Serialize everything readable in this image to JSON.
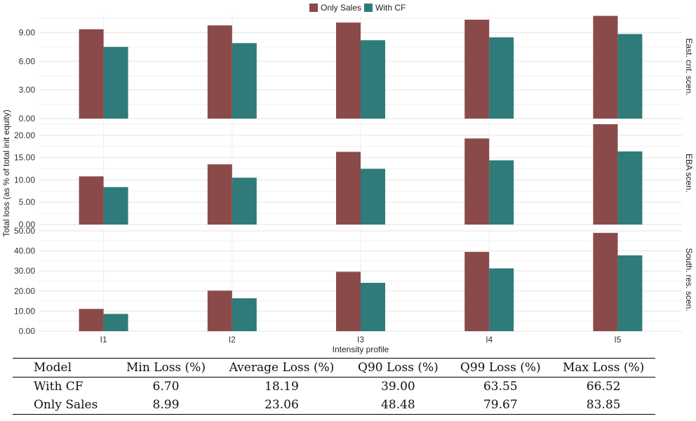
{
  "chart_data": {
    "type": "bar",
    "legend": [
      "Only Sales",
      "With CF"
    ],
    "colors": {
      "Only Sales": "#8B4A4A",
      "With CF": "#2E7B7A"
    },
    "categories": [
      "I1",
      "I2",
      "I3",
      "I4",
      "I5"
    ],
    "xlabel": "Intensity profile",
    "ylabel": "Total loss (as % of total init equity)",
    "legend_position": "top-center",
    "panels": [
      {
        "label": "East. cnt. scen.",
        "ylim": [
          0,
          10.5
        ],
        "ticks": [
          "0.00",
          "3.00",
          "6.00",
          "9.00"
        ],
        "tick_values": [
          0,
          3,
          6,
          9
        ],
        "series": [
          {
            "name": "Only Sales",
            "values": [
              9.35,
              9.75,
              10.05,
              10.35,
              10.75
            ]
          },
          {
            "name": "With CF",
            "values": [
              7.5,
              7.9,
              8.2,
              8.5,
              8.85
            ]
          }
        ]
      },
      {
        "label": "EBA scen.",
        "ylim": [
          0,
          22.5
        ],
        "ticks": [
          "0.00",
          "5.00",
          "10.00",
          "15.00",
          "20.00"
        ],
        "tick_values": [
          0,
          5,
          10,
          15,
          20
        ],
        "series": [
          {
            "name": "Only Sales",
            "values": [
              10.8,
              13.5,
              16.3,
              19.3,
              22.5
            ]
          },
          {
            "name": "With CF",
            "values": [
              8.4,
              10.5,
              12.5,
              14.4,
              16.4
            ]
          }
        ]
      },
      {
        "label": "South. res. scen.",
        "ylim": [
          0,
          50
        ],
        "ticks": [
          "0.00",
          "10.00",
          "20.00",
          "30.00",
          "40.00",
          "50.00"
        ],
        "tick_values": [
          0,
          10,
          20,
          30,
          40,
          50
        ],
        "series": [
          {
            "name": "Only Sales",
            "values": [
              11.1,
              20.2,
              29.6,
              39.5,
              49.0
            ]
          },
          {
            "name": "With CF",
            "values": [
              8.6,
              16.4,
              24.1,
              31.3,
              37.8
            ]
          }
        ]
      }
    ]
  },
  "table": {
    "headers": [
      "Model",
      "Min Loss (%)",
      "Average Loss (%)",
      "Q90 Loss (%)",
      "Q99 Loss (%)",
      "Max Loss (%)"
    ],
    "rows": [
      [
        "With CF",
        "6.70",
        "18.19",
        "39.00",
        "63.55",
        "66.52"
      ],
      [
        "Only Sales",
        "8.99",
        "23.06",
        "48.48",
        "79.67",
        "83.85"
      ]
    ]
  }
}
